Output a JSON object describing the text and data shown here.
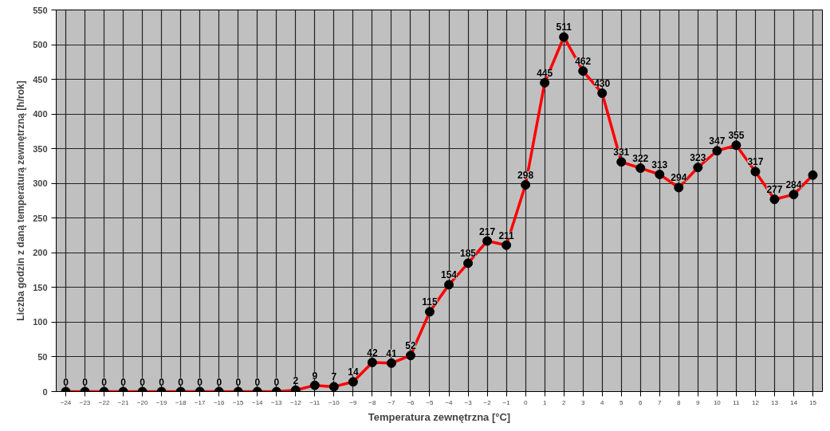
{
  "chart_data": {
    "type": "line",
    "xlabel": "Temperatura zewnętrzna [°C]",
    "ylabel": "Liczba godzin z daną temperaturą zewnętrzną [h/rok]",
    "x": [
      -24,
      -23,
      -22,
      -21,
      -20,
      -19,
      -18,
      -17,
      -16,
      -15,
      -14,
      -13,
      -12,
      -11,
      -10,
      -9,
      -8,
      -7,
      -6,
      -5,
      -4,
      -3,
      -2,
      -1,
      0,
      1,
      2,
      3,
      4,
      5,
      6,
      7,
      8,
      9,
      10,
      11,
      12,
      13,
      14,
      15
    ],
    "series": [
      {
        "color": "#ff0000",
        "values": [
          0,
          0,
          0,
          0,
          0,
          0,
          0,
          0,
          0,
          0,
          0,
          0,
          2,
          9,
          7,
          14,
          42,
          41,
          52,
          115,
          154,
          185,
          217,
          211,
          298,
          445,
          511,
          462,
          430,
          331,
          322,
          313,
          294,
          323,
          347,
          355,
          317,
          277,
          284,
          312
        ],
        "value_labels": [
          "0",
          "0",
          "0",
          "0",
          "0",
          "0",
          "0",
          "0",
          "0",
          "0",
          "0",
          "0",
          "2",
          "9",
          "7",
          "14",
          "42",
          "41",
          "52",
          "115",
          "154",
          "185",
          "217",
          "211",
          "298",
          "445",
          "511",
          "462",
          "430",
          "331",
          "322",
          "313",
          "294",
          "323",
          "347",
          "355",
          "317",
          "277",
          "284",
          null
        ]
      }
    ],
    "xlim": [
      -24.5,
      15.5
    ],
    "xticks": [
      -24,
      -23,
      -22,
      -21,
      -20,
      -19,
      -18,
      -17,
      -16,
      -15,
      -14,
      -13,
      -12,
      -11,
      -10,
      -9,
      -8,
      -7,
      -6,
      -5,
      -4,
      -3,
      -2,
      -1,
      0,
      1,
      2,
      3,
      4,
      5,
      6,
      7,
      8,
      9,
      10,
      11,
      12,
      13,
      14,
      15
    ],
    "ylim": [
      0,
      550
    ],
    "yticks": [
      0,
      50,
      100,
      150,
      200,
      250,
      300,
      350,
      400,
      450,
      500,
      550
    ],
    "grid": true,
    "marker": "circle",
    "line_style": "solid"
  }
}
